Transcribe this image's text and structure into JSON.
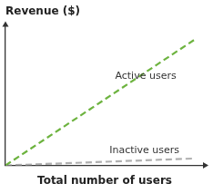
{
  "chart_data": {
    "type": "line",
    "ylabel": "Revenue ($)",
    "xlabel": "Total number of users",
    "x": [
      0.0,
      10.0
    ],
    "series": [
      {
        "color": "#6db33f",
        "line_style": "dashed",
        "values": [
          0.0,
          7.2
        ]
      },
      {
        "color": "#b0b0b0",
        "line_style": "dashed",
        "values": [
          0.0,
          0.4
        ]
      }
    ],
    "annotations": [
      {
        "text": "Active users",
        "x": 5.8,
        "y": 4.8
      },
      {
        "text": "Inactive users",
        "x": 5.5,
        "y": 0.55
      }
    ],
    "xlim": [
      0,
      10.5
    ],
    "ylim": [
      0,
      8.0
    ],
    "tick_labels": false,
    "grid": false,
    "background_color": "#ffffff"
  }
}
